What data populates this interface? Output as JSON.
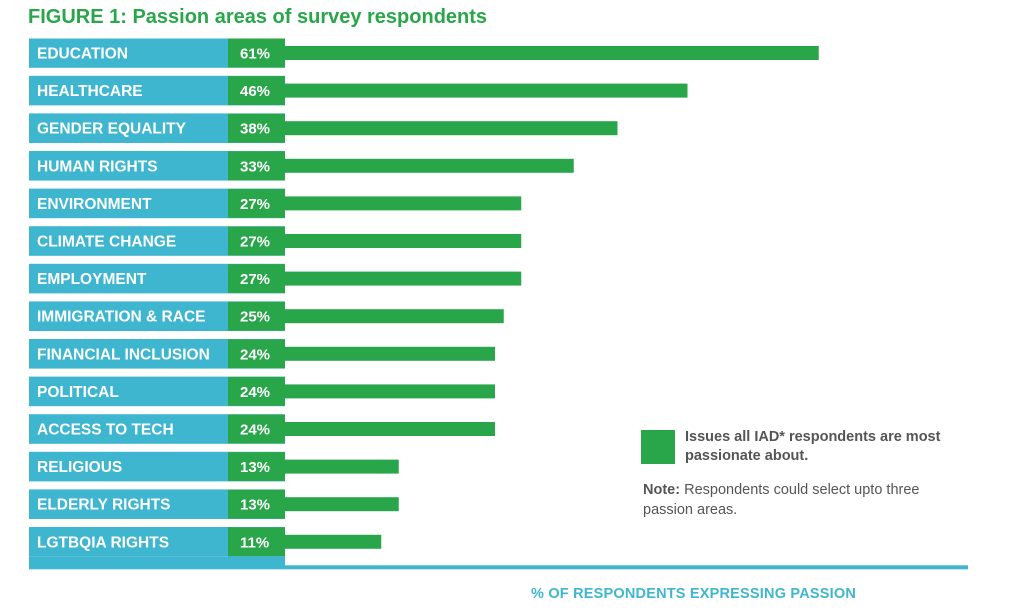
{
  "colors": {
    "title": "#2aa64a",
    "bar": "#2aa64a",
    "label_bg": "#3eb6cf",
    "axis": "#3eb6cf",
    "text": "#555555"
  },
  "chart_data": {
    "type": "bar",
    "orientation": "horizontal",
    "title": "FIGURE 1: Passion areas of survey respondents",
    "xlabel": "% OF RESPONDENTS EXPRESSING PASSION",
    "ylabel": "",
    "categories": [
      "EDUCATION",
      "HEALTHCARE",
      "GENDER EQUALITY",
      "HUMAN RIGHTS",
      "ENVIRONMENT",
      "CLIMATE CHANGE",
      "EMPLOYMENT",
      "IMMIGRATION & RACE",
      "FINANCIAL INCLUSION",
      "POLITICAL",
      "ACCESS TO TECH",
      "RELIGIOUS",
      "ELDERLY RIGHTS",
      "LGTBQIA RIGHTS"
    ],
    "values": [
      61,
      46,
      38,
      33,
      27,
      27,
      27,
      25,
      24,
      24,
      24,
      13,
      13,
      11
    ],
    "data_labels": [
      "61%",
      "46%",
      "38%",
      "33%",
      "27%",
      "27%",
      "27%",
      "25%",
      "24%",
      "24%",
      "24%",
      "13%",
      "13%",
      "11%"
    ],
    "value_unit": "%",
    "grid": false,
    "legend": {
      "position": "bottom-right",
      "entries": [
        {
          "label": "Issues all IAD* respondents are most passionate about.",
          "color": "#2aa64a"
        }
      ]
    }
  },
  "note": {
    "prefix": "Note:",
    "text": " Respondents could select upto three passion areas."
  }
}
